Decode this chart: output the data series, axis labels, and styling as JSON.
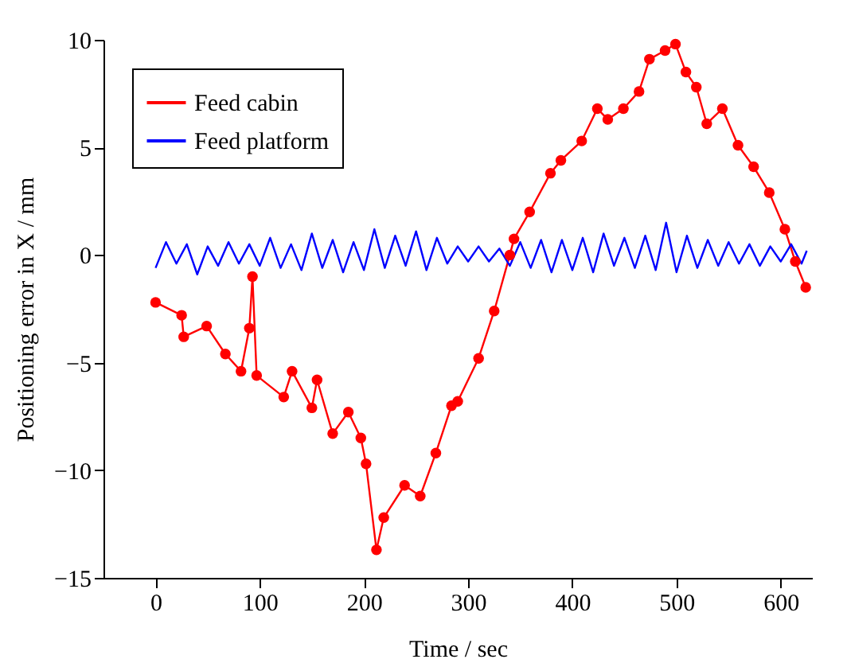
{
  "chart_data": {
    "type": "line",
    "xlabel": "Time / sec",
    "ylabel": "Positioning error in X / mm",
    "xlim": [
      -50,
      630
    ],
    "xticks": [
      0,
      100,
      200,
      300,
      400,
      500,
      600
    ],
    "ylim": [
      -15,
      10
    ],
    "yticks": [
      -15,
      -10,
      -5,
      0,
      5,
      10
    ],
    "grid": false,
    "legend": "top left",
    "line_style": "solid",
    "series": [
      {
        "name": "Feed cabin",
        "color": "#ff0000",
        "marker": "circle",
        "x": [
          0,
          25,
          27,
          49,
          67,
          82,
          90,
          93,
          97,
          123,
          131,
          150,
          155,
          170,
          185,
          197,
          202,
          212,
          219,
          239,
          254,
          269,
          284,
          290,
          310,
          325,
          340,
          344,
          359,
          379,
          389,
          409,
          424,
          434,
          449,
          464,
          474,
          489,
          499,
          509,
          519,
          529,
          544,
          559,
          574,
          589,
          604,
          614,
          624
        ],
        "values": [
          -2.2,
          -2.8,
          -3.8,
          -3.3,
          -4.6,
          -5.4,
          -3.4,
          -1.0,
          -5.6,
          -6.6,
          -5.4,
          -7.1,
          -5.8,
          -8.3,
          -7.3,
          -8.5,
          -9.7,
          -13.7,
          -12.2,
          -10.7,
          -11.2,
          -9.2,
          -7.0,
          -6.8,
          -4.8,
          -2.6,
          0.0,
          0.75,
          2.0,
          3.8,
          4.4,
          5.3,
          6.8,
          6.3,
          6.8,
          7.6,
          9.1,
          9.5,
          9.8,
          8.5,
          7.8,
          6.1,
          6.8,
          5.1,
          4.1,
          2.9,
          1.2,
          -0.3,
          -1.5
        ]
      },
      {
        "name": "Feed platform",
        "color": "#0000ff",
        "x": [
          0,
          10,
          20,
          30,
          40,
          50,
          60,
          70,
          80,
          90,
          100,
          110,
          120,
          130,
          140,
          150,
          160,
          170,
          180,
          190,
          200,
          210,
          220,
          230,
          240,
          250,
          260,
          270,
          280,
          290,
          300,
          310,
          320,
          330,
          340,
          350,
          360,
          370,
          380,
          390,
          400,
          410,
          420,
          430,
          440,
          450,
          460,
          470,
          480,
          490,
          500,
          510,
          520,
          530,
          540,
          550,
          560,
          570,
          580,
          590,
          600,
          610,
          620,
          625
        ],
        "values": [
          -0.6,
          0.6,
          -0.4,
          0.5,
          -0.9,
          0.4,
          -0.5,
          0.6,
          -0.4,
          0.5,
          -0.5,
          0.8,
          -0.6,
          0.5,
          -0.7,
          1.0,
          -0.6,
          0.7,
          -0.8,
          0.6,
          -0.7,
          1.2,
          -0.6,
          0.9,
          -0.5,
          1.1,
          -0.7,
          0.8,
          -0.4,
          0.4,
          -0.3,
          0.4,
          -0.3,
          0.3,
          -0.5,
          0.6,
          -0.6,
          0.7,
          -0.8,
          0.7,
          -0.7,
          0.8,
          -0.8,
          1.0,
          -0.5,
          0.8,
          -0.6,
          0.9,
          -0.7,
          1.5,
          -0.8,
          0.9,
          -0.6,
          0.7,
          -0.5,
          0.6,
          -0.4,
          0.5,
          -0.5,
          0.4,
          -0.3,
          0.5,
          -0.4,
          0.2
        ]
      }
    ]
  }
}
